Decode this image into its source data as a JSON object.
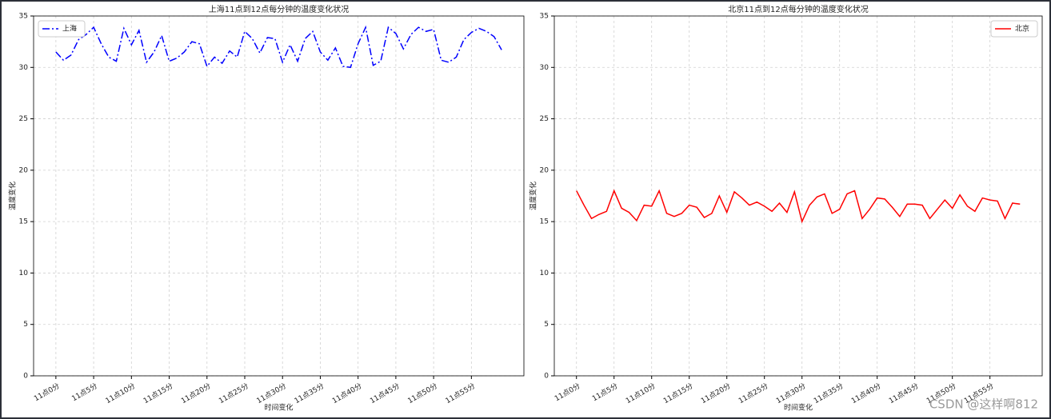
{
  "chart_data": [
    {
      "type": "line",
      "title": "上海11点到12点每分钟的温度变化状况",
      "xlabel": "时间变化",
      "ylabel": "温度变化",
      "x": [
        0,
        1,
        2,
        3,
        4,
        5,
        6,
        7,
        8,
        9,
        10,
        11,
        12,
        13,
        14,
        15,
        16,
        17,
        18,
        19,
        20,
        21,
        22,
        23,
        24,
        25,
        26,
        27,
        28,
        29,
        30,
        31,
        32,
        33,
        34,
        35,
        36,
        37,
        38,
        39,
        40,
        41,
        42,
        43,
        44,
        45,
        46,
        47,
        48,
        49,
        50,
        51,
        52,
        53,
        54,
        55,
        56,
        57,
        58,
        59
      ],
      "series": [
        {
          "name": "上海",
          "color": "#0000ff",
          "linestyle": "dashdot",
          "values": [
            31.5,
            30.7,
            31.2,
            32.7,
            33.2,
            33.9,
            32.3,
            31.0,
            30.6,
            33.8,
            32.2,
            33.6,
            30.5,
            31.5,
            33.1,
            30.6,
            30.9,
            31.5,
            32.5,
            32.3,
            30.1,
            31.0,
            30.4,
            31.6,
            31.0,
            33.5,
            32.8,
            31.4,
            32.9,
            32.8,
            30.5,
            32.2,
            30.6,
            32.8,
            33.5,
            31.5,
            30.7,
            31.9,
            30.1,
            30.0,
            32.3,
            33.9,
            30.2,
            30.6,
            33.9,
            33.3,
            31.8,
            33.2,
            33.9,
            33.5,
            33.7,
            30.7,
            30.5,
            31.0,
            32.7,
            33.4,
            33.8,
            33.5,
            33.0,
            31.7
          ]
        }
      ],
      "xlim": [
        -2.95,
        61.95
      ],
      "ylim": [
        0,
        35
      ],
      "yticks": [
        0,
        5,
        10,
        15,
        20,
        25,
        30,
        35
      ],
      "xticks": [
        {
          "value": 0,
          "label": "11点0分"
        },
        {
          "value": 5,
          "label": "11点5分"
        },
        {
          "value": 10,
          "label": "11点10分"
        },
        {
          "value": 15,
          "label": "11点15分"
        },
        {
          "value": 20,
          "label": "11点20分"
        },
        {
          "value": 25,
          "label": "11点25分"
        },
        {
          "value": 30,
          "label": "11点30分"
        },
        {
          "value": 35,
          "label": "11点35分"
        },
        {
          "value": 40,
          "label": "11点40分"
        },
        {
          "value": 45,
          "label": "11点45分"
        },
        {
          "value": 50,
          "label": "11点50分"
        },
        {
          "value": 55,
          "label": "11点55分"
        }
      ],
      "grid": true,
      "legend": "upper left"
    },
    {
      "type": "line",
      "title": "北京11点到12点每分钟的温度变化状况",
      "xlabel": "时间变化",
      "ylabel": "温度变化",
      "x": [
        0,
        1,
        2,
        3,
        4,
        5,
        6,
        7,
        8,
        9,
        10,
        11,
        12,
        13,
        14,
        15,
        16,
        17,
        18,
        19,
        20,
        21,
        22,
        23,
        24,
        25,
        26,
        27,
        28,
        29,
        30,
        31,
        32,
        33,
        34,
        35,
        36,
        37,
        38,
        39,
        40,
        41,
        42,
        43,
        44,
        45,
        46,
        47,
        48,
        49,
        50,
        51,
        52,
        53,
        54,
        55,
        56,
        57,
        58,
        59
      ],
      "series": [
        {
          "name": "北京",
          "color": "#ff0000",
          "linestyle": "solid",
          "values": [
            18.0,
            16.6,
            15.3,
            15.7,
            16.0,
            18.0,
            16.3,
            15.9,
            15.1,
            16.6,
            16.5,
            18.0,
            15.8,
            15.5,
            15.8,
            16.6,
            16.4,
            15.4,
            15.8,
            17.5,
            15.9,
            17.9,
            17.3,
            16.6,
            16.9,
            16.5,
            16.0,
            16.8,
            15.9,
            17.9,
            15.0,
            16.6,
            17.4,
            17.7,
            15.8,
            16.2,
            17.7,
            18.0,
            15.3,
            16.2,
            17.3,
            17.2,
            16.4,
            15.5,
            16.7,
            16.7,
            16.6,
            15.3,
            16.2,
            17.1,
            16.3,
            17.6,
            16.5,
            16.0,
            17.3,
            17.1,
            17.0,
            15.3,
            16.8,
            16.7
          ]
        }
      ],
      "xlim": [
        -2.95,
        61.95
      ],
      "ylim": [
        0,
        35
      ],
      "yticks": [
        0,
        5,
        10,
        15,
        20,
        25,
        30,
        35
      ],
      "xticks": [
        {
          "value": 0,
          "label": "11点0分"
        },
        {
          "value": 5,
          "label": "11点5分"
        },
        {
          "value": 10,
          "label": "11点10分"
        },
        {
          "value": 15,
          "label": "11点15分"
        },
        {
          "value": 20,
          "label": "11点20分"
        },
        {
          "value": 25,
          "label": "11点25分"
        },
        {
          "value": 30,
          "label": "11点30分"
        },
        {
          "value": 35,
          "label": "11点35分"
        },
        {
          "value": 40,
          "label": "11点40分"
        },
        {
          "value": 45,
          "label": "11点45分"
        },
        {
          "value": 50,
          "label": "11点50分"
        },
        {
          "value": 55,
          "label": "11点55分"
        }
      ],
      "grid": true,
      "legend": "upper right"
    }
  ],
  "watermark": "CSDN @这样啊812"
}
